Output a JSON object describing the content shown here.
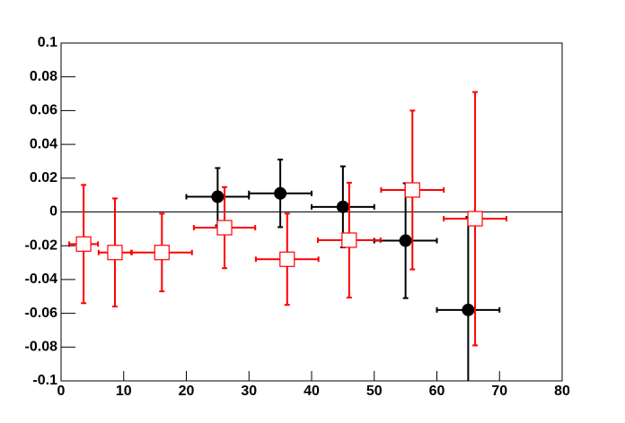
{
  "chart_data": {
    "type": "errorbar",
    "xlim": [
      0,
      80
    ],
    "xticks": [
      0,
      10,
      20,
      30,
      40,
      50,
      60,
      70,
      80
    ],
    "ylim": [
      -0.1,
      0.1
    ],
    "yticks": [
      -0.1,
      -0.08,
      -0.06,
      -0.04,
      -0.02,
      0,
      0.02,
      0.04,
      0.06,
      0.08,
      0.1
    ],
    "reference_line": 0,
    "series": [
      {
        "color": "#000000",
        "marker": "filled-circle",
        "x": [
          25,
          35,
          45,
          55,
          65
        ],
        "values": [
          0.009,
          0.011,
          0.003,
          -0.017,
          -0.058
        ],
        "xerr": [
          5,
          5,
          5,
          5,
          5
        ],
        "yerr": [
          0.017,
          0.02,
          0.024,
          0.034,
          0.055
        ]
      },
      {
        "color": "#ff0000",
        "marker": "open-square",
        "x": [
          3.6,
          8.6,
          16.1,
          26.1,
          36.1,
          46,
          56.1,
          66.1
        ],
        "values": [
          -0.019,
          -0.024,
          -0.024,
          -0.0093,
          -0.028,
          -0.0167,
          0.013,
          -0.004
        ],
        "xerr": [
          2.3,
          2.6,
          4.8,
          4.9,
          5,
          5,
          5,
          5
        ],
        "yerr": [
          0.035,
          0.032,
          0.023,
          0.024,
          0.027,
          0.034,
          0.047,
          0.075
        ]
      }
    ]
  }
}
